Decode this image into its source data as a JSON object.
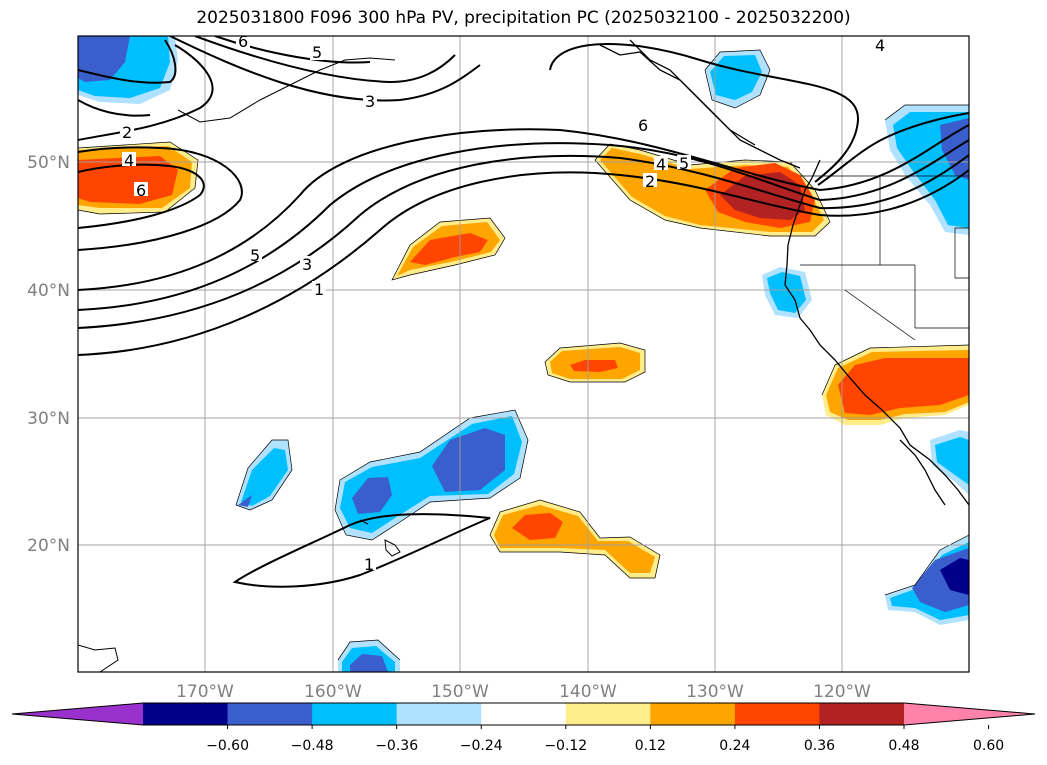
{
  "title": "2025031800 F096 300 hPa PV, precipitation PC (2025032100 - 2025032200)",
  "lat_labels": [
    "50°N",
    "40°N",
    "30°N",
    "20°N"
  ],
  "lon_labels": [
    "170°W",
    "160°W",
    "150°W",
    "140°W",
    "130°W",
    "120°W"
  ],
  "colorbar": {
    "ticks": [
      "−0.60",
      "−0.48",
      "−0.36",
      "−0.24",
      "−0.12",
      "0.12",
      "0.24",
      "0.36",
      "0.48",
      "0.60"
    ],
    "colors": [
      "#9932cc",
      "#00008b",
      "#3a5fcd",
      "#00bfff",
      "#b0e2ff",
      "#ffffff",
      "#ffec8b",
      "#ffa500",
      "#ff4500",
      "#b22222",
      "#ff82ab"
    ]
  },
  "contour_labels": [
    "6",
    "5",
    "3",
    "2",
    "4",
    "6",
    "5",
    "3",
    "1",
    "6",
    "4",
    "5",
    "2",
    "4",
    "1"
  ]
}
